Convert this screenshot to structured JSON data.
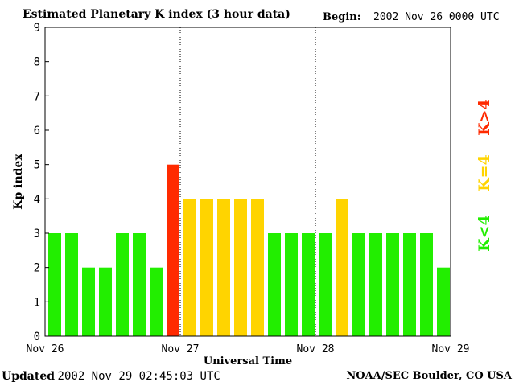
{
  "header": {
    "title": "Estimated Planetary K index (3 hour data)",
    "begin_label": "Begin:",
    "begin_value": "2002 Nov 26 0000 UTC"
  },
  "footer": {
    "updated_label": "Updated",
    "updated_value": "2002 Nov 29 02:45:03 UTC",
    "credit": "NOAA/SEC Boulder, CO USA"
  },
  "colors": {
    "low": "#22ee00",
    "equal": "#ffd400",
    "high": "#ff2a00"
  },
  "chart_data": {
    "type": "bar",
    "xlabel": "Universal Time",
    "ylabel": "Kp index",
    "ylim": [
      0,
      9
    ],
    "yticks": [
      "0",
      "1",
      "2",
      "3",
      "4",
      "5",
      "6",
      "7",
      "8",
      "9"
    ],
    "x_tick_labels": [
      "Nov 26",
      "Nov 27",
      "Nov 28",
      "Nov 29"
    ],
    "day_dividers": [
      "Nov 27",
      "Nov 28"
    ],
    "interval_hours": 3,
    "values": [
      3,
      3,
      2,
      2,
      3,
      3,
      2,
      5,
      4,
      4,
      4,
      4,
      4,
      3,
      3,
      3,
      3,
      4,
      3,
      3,
      3,
      3,
      3,
      2
    ],
    "legend": {
      "low": "K<4",
      "equal": "K=4",
      "high": "K>4"
    }
  }
}
